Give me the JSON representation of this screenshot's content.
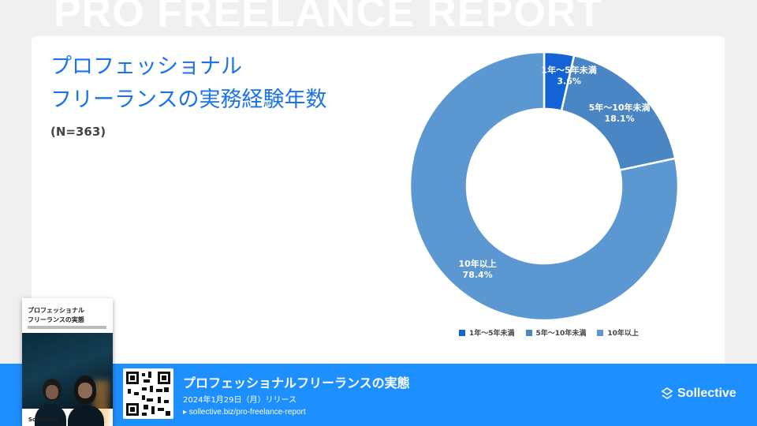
{
  "background_title": "PRO FREELANCE REPORT",
  "header": {
    "title_line1": "プロフェッショナル",
    "title_line2": "フリーランスの実務経験年数",
    "sample": "(N=363)"
  },
  "chart_data": {
    "type": "pie",
    "donut": true,
    "categories": [
      "1年〜5年未満",
      "5年〜10年未満",
      "10年以上"
    ],
    "values": [
      3.6,
      18.1,
      78.4
    ],
    "labels": [
      "3.6%",
      "18.1%",
      "78.4%"
    ],
    "colors": [
      "#1463d6",
      "#4a86c4",
      "#5b97d1"
    ],
    "legend_position": "bottom"
  },
  "footer": {
    "title": "プロフェッショナルフリーランスの実態",
    "date": "2024年1月29日（月）リリース",
    "link": "▸ sollective.biz/pro-freelance-report",
    "brand": "Sollective"
  },
  "book": {
    "title_line1": "プロフェッショナル",
    "title_line2": "フリーランスの実態",
    "brand": "Sollective"
  }
}
